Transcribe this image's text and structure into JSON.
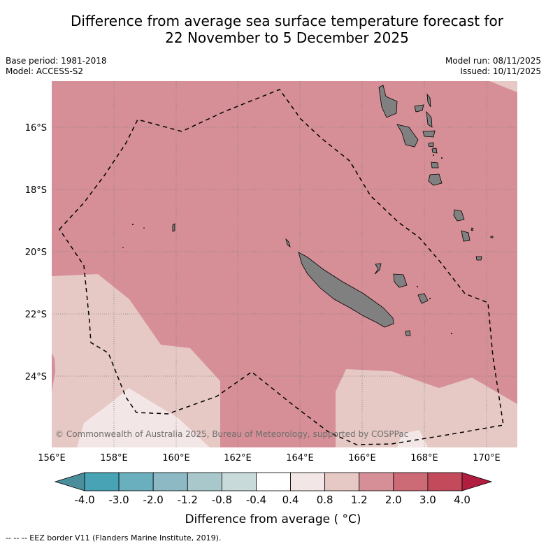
{
  "title": {
    "line1": "Difference from average sea surface temperature forecast for",
    "line2": "22 November to 5 December 2025"
  },
  "meta": {
    "base_period": "Base period: 1981-2018",
    "model": "Model: ACCESS-S2",
    "model_run": "Model run: 08/11/2025",
    "issued": "Issued: 10/11/2025"
  },
  "map": {
    "lat_labels": [
      "16°S",
      "18°S",
      "20°S",
      "22°S",
      "24°S"
    ],
    "lon_labels": [
      "156°E",
      "158°E",
      "160°E",
      "162°E",
      "164°E",
      "166°E",
      "168°E",
      "170°E"
    ],
    "copyright": "© Commonwealth of Australia 2025, Bureau of Meteorology, supported by COSPPac"
  },
  "colors": {
    "c_0_4_0_8": "#f3e6e6",
    "c_0_8_1_2": "#e6c8c4",
    "c_1_2_2_0": "#d68f96",
    "land": "#808080",
    "grid": "#7f7f7f"
  },
  "colorbar": {
    "tick_labels": [
      "-4.0",
      "-3.0",
      "-2.0",
      "-1.2",
      "-0.8",
      "-0.4",
      "0.4",
      "0.8",
      "1.2",
      "2.0",
      "3.0",
      "4.0"
    ],
    "colors": [
      "#4a8e9b",
      "#48a3b4",
      "#6aafbd",
      "#8db9c5",
      "#a8c8cc",
      "#c9dadb",
      "#ffffff",
      "#f3e6e6",
      "#e6c8c4",
      "#d68f96",
      "#cc6a75",
      "#c24a5b",
      "#b01d3e"
    ],
    "title": "Difference from average ( °C)"
  },
  "footnote": "-- -- -- EEZ border V11 (Flanders Marine Institute, 2019)."
}
